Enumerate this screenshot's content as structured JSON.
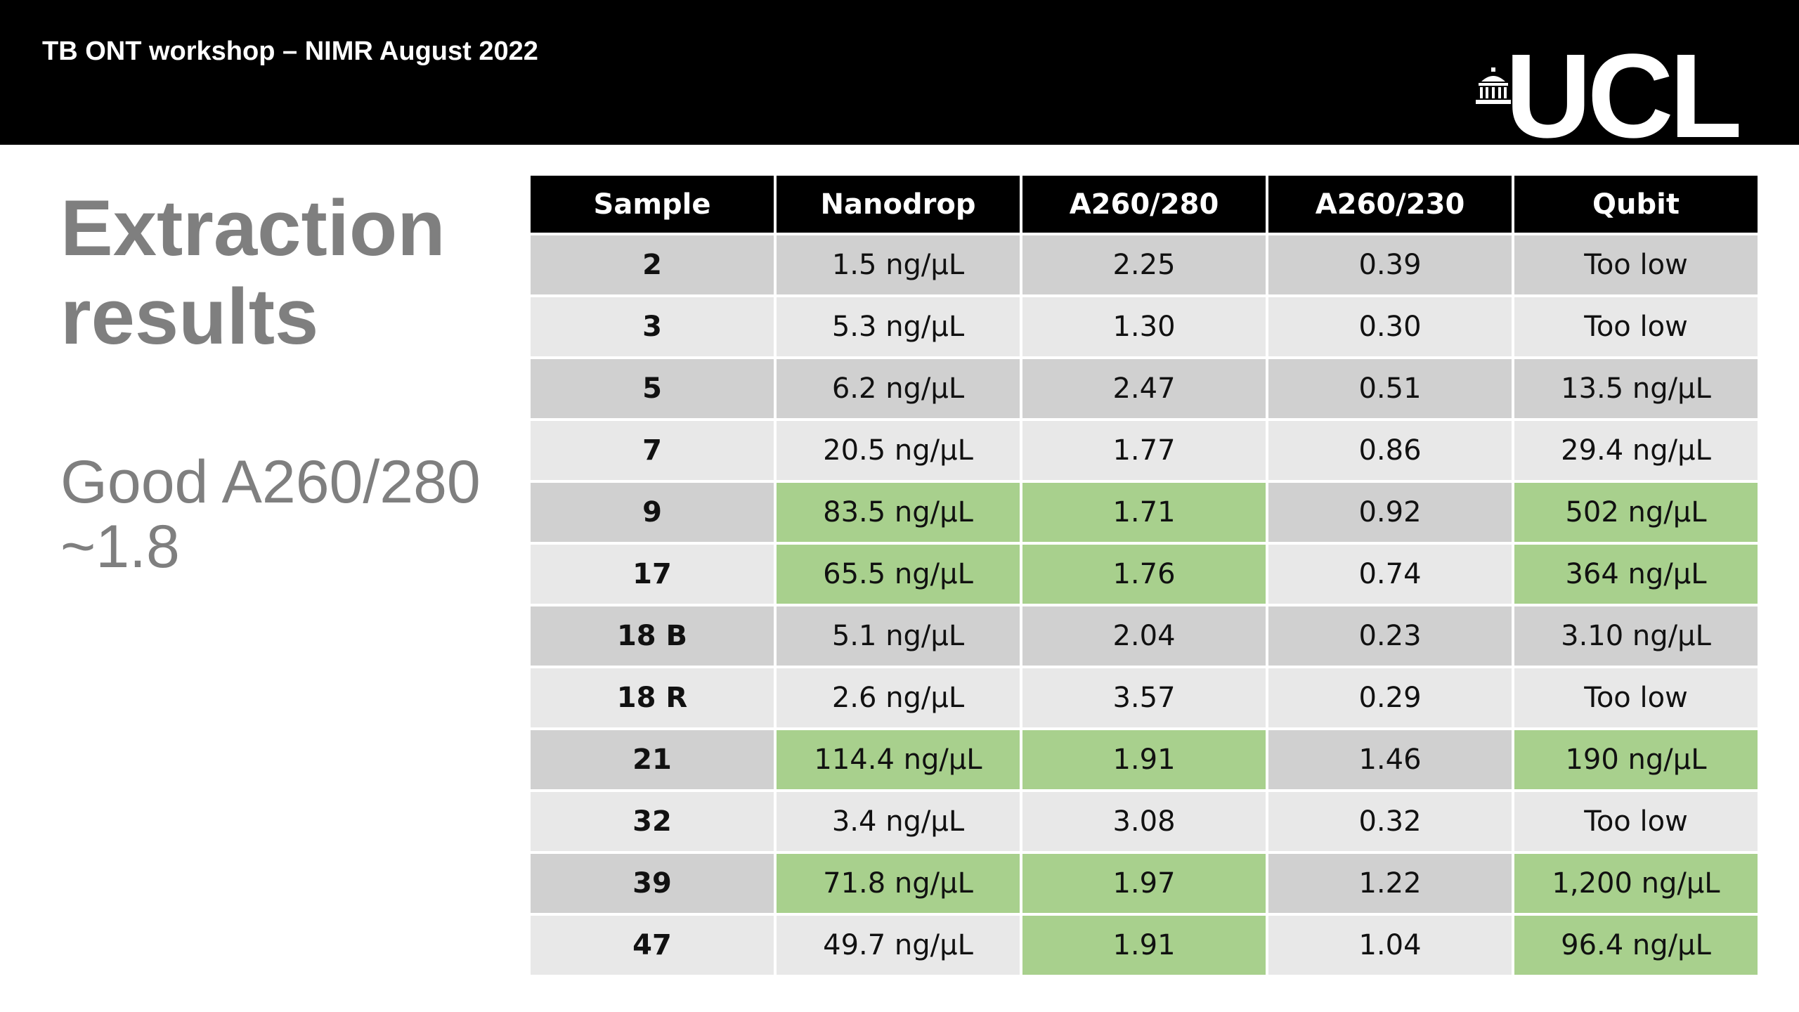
{
  "header": {
    "title": "TB ONT workshop – NIMR August 2022",
    "logo_text": "UCL",
    "logo_icon": "portico-icon"
  },
  "slide": {
    "title": "Extraction results",
    "note": "Good A260/280 ~1.8"
  },
  "colors": {
    "header_bg": "#000000",
    "good_highlight": "#a8d08d",
    "row_dark": "#d0d0d0",
    "row_light": "#e8e8e8",
    "title_gray": "#7f7f7f"
  },
  "table": {
    "columns": [
      "Sample",
      "Nanodrop",
      "A260/280",
      "A260/230",
      "Qubit"
    ],
    "rows": [
      {
        "cells": [
          "2",
          "1.5 ng/µL",
          "2.25",
          "0.39",
          "Too low"
        ],
        "highlight": [
          false,
          false,
          false,
          false,
          false
        ]
      },
      {
        "cells": [
          "3",
          "5.3 ng/µL",
          "1.30",
          "0.30",
          "Too low"
        ],
        "highlight": [
          false,
          false,
          false,
          false,
          false
        ]
      },
      {
        "cells": [
          "5",
          "6.2 ng/µL",
          "2.47",
          "0.51",
          "13.5 ng/µL"
        ],
        "highlight": [
          false,
          false,
          false,
          false,
          false
        ]
      },
      {
        "cells": [
          "7",
          "20.5 ng/µL",
          "1.77",
          "0.86",
          "29.4 ng/µL"
        ],
        "highlight": [
          false,
          false,
          false,
          false,
          false
        ]
      },
      {
        "cells": [
          "9",
          "83.5 ng/µL",
          "1.71",
          "0.92",
          "502 ng/µL"
        ],
        "highlight": [
          false,
          true,
          true,
          false,
          true
        ]
      },
      {
        "cells": [
          "17",
          "65.5 ng/µL",
          "1.76",
          "0.74",
          "364 ng/µL"
        ],
        "highlight": [
          false,
          true,
          true,
          false,
          true
        ]
      },
      {
        "cells": [
          "18 B",
          "5.1 ng/µL",
          "2.04",
          "0.23",
          "3.10 ng/µL"
        ],
        "highlight": [
          false,
          false,
          false,
          false,
          false
        ]
      },
      {
        "cells": [
          "18 R",
          "2.6 ng/µL",
          "3.57",
          "0.29",
          "Too low"
        ],
        "highlight": [
          false,
          false,
          false,
          false,
          false
        ]
      },
      {
        "cells": [
          "21",
          "114.4 ng/µL",
          "1.91",
          "1.46",
          "190 ng/µL"
        ],
        "highlight": [
          false,
          true,
          true,
          false,
          true
        ]
      },
      {
        "cells": [
          "32",
          "3.4 ng/µL",
          "3.08",
          "0.32",
          "Too low"
        ],
        "highlight": [
          false,
          false,
          false,
          false,
          false
        ]
      },
      {
        "cells": [
          "39",
          "71.8 ng/µL",
          "1.97",
          "1.22",
          "1,200 ng/µL"
        ],
        "highlight": [
          false,
          true,
          true,
          false,
          true
        ]
      },
      {
        "cells": [
          "47",
          "49.7 ng/µL",
          "1.91",
          "1.04",
          "96.4 ng/µL"
        ],
        "highlight": [
          false,
          false,
          true,
          false,
          true
        ]
      }
    ]
  }
}
